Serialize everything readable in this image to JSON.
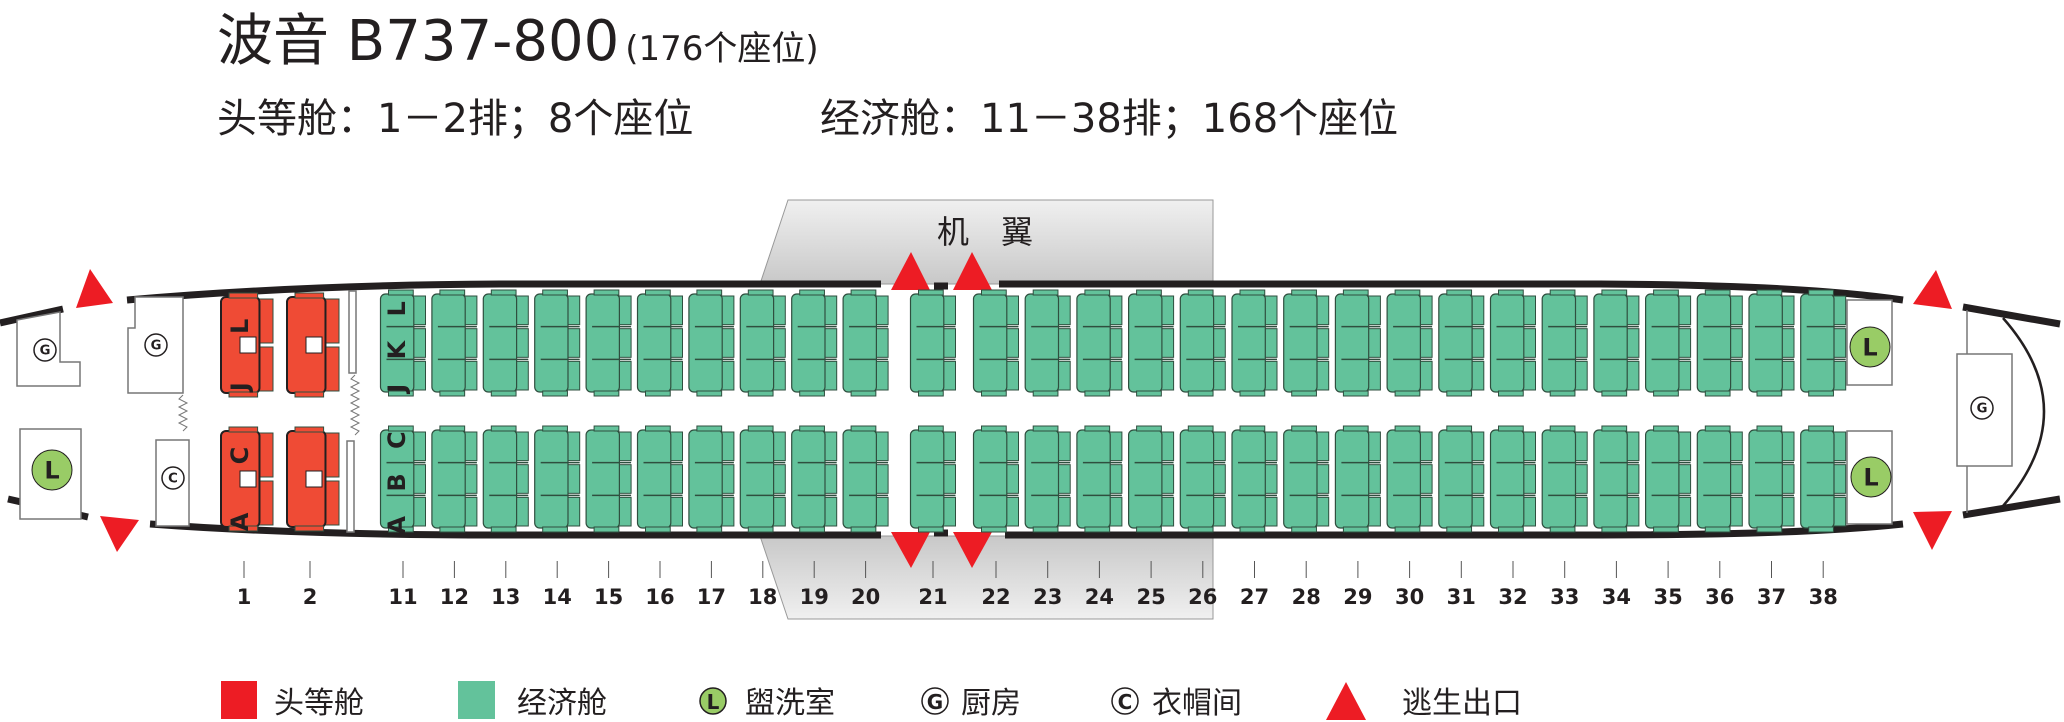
{
  "header": {
    "title": "波音 B737-800",
    "title_note": "(176个座位)",
    "first_class_info": "头等舱：1－2排；8个座位",
    "economy_info": "经济舱：11－38排；168个座位"
  },
  "wing_label": "机　翼",
  "facility_symbols": {
    "lavatory": "L",
    "galley": "G",
    "closet": "C"
  },
  "cabins": {
    "first": {
      "rows": [
        "1",
        "2"
      ],
      "seat_labels_top": "J L",
      "seat_labels_bottom": "A C",
      "color": "#ef4b35"
    },
    "economy": {
      "rows": [
        "11",
        "12",
        "13",
        "14",
        "15",
        "16",
        "17",
        "18",
        "19",
        "20",
        "21",
        "22",
        "23",
        "24",
        "25",
        "26",
        "27",
        "28",
        "29",
        "30",
        "31",
        "32",
        "33",
        "34",
        "35",
        "36",
        "37",
        "38"
      ],
      "seat_labels_top": "J K L",
      "seat_labels_bottom": "A B C",
      "color": "#63c29b"
    }
  },
  "colors": {
    "exit": "#ed1c24",
    "lavatory": "#99cc66",
    "hull": "#231f20",
    "wing": "#d6d6d6"
  },
  "legend": [
    {
      "symbol": "red-square",
      "label": "头等舱"
    },
    {
      "symbol": "green-square",
      "label": "经济舱"
    },
    {
      "symbol": "L",
      "label": "盥洗室"
    },
    {
      "symbol": "G",
      "label": "厨房"
    },
    {
      "symbol": "C",
      "label": "衣帽间"
    },
    {
      "symbol": "triangle",
      "label": "逃生出口"
    }
  ]
}
